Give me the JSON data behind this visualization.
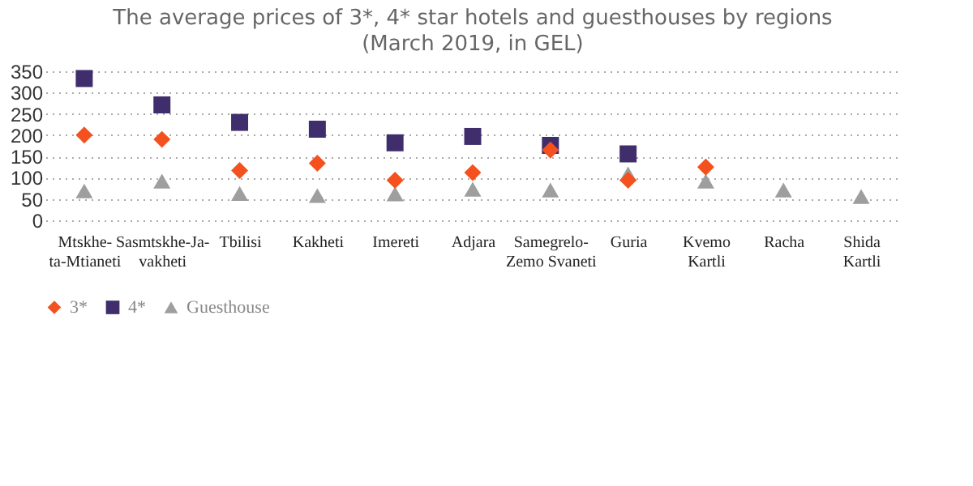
{
  "chart_data": {
    "type": "scatter",
    "title": "The average prices of 3*, 4* star hotels and guesthouses by regions",
    "subtitle": "(March 2019, in GEL)",
    "categories": [
      "Mtskhe-\nta-Mtianeti",
      "Sasmtskhe-Ja-\nvakheti",
      "Tbilisi",
      "Kakheti",
      "Imereti",
      "Adjara",
      "Samegrelo-\nZemo Svaneti",
      "Guria",
      "Kvemo\nKartli",
      "Racha",
      "Shida\nKartli"
    ],
    "series": [
      {
        "name": "3*",
        "color": "#f4511e",
        "marker": "diamond",
        "values": [
          200,
          190,
          117,
          134,
          94,
          112,
          165,
          94,
          125,
          null,
          null
        ]
      },
      {
        "name": "4*",
        "color": "#3f2e6b",
        "marker": "square",
        "values": [
          333,
          271,
          230,
          214,
          182,
          197,
          176,
          156,
          null,
          null,
          null
        ]
      },
      {
        "name": "Guesthouse",
        "color": "#9e9e9e",
        "marker": "triangle",
        "values": [
          69,
          92,
          63,
          58,
          62,
          73,
          71,
          109,
          92,
          71,
          56
        ]
      }
    ],
    "ylim": [
      0,
      350
    ],
    "yticks": [
      0,
      50,
      100,
      150,
      200,
      250,
      300,
      350
    ],
    "grid": "y",
    "legend": "bottom"
  }
}
